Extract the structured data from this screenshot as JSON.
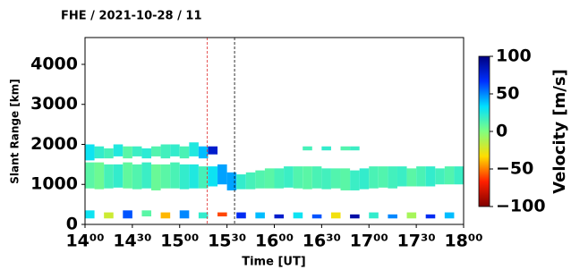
{
  "chart_data": {
    "type": "range-time",
    "title": "FHE / 2021-10-28 / 11",
    "xlabel": "Time [UT]",
    "ylabel": "Slant Range [km]",
    "colorbar_label": "Velocity [m/s]",
    "xlim": [
      14,
      18
    ],
    "xticks": [
      {
        "value": 14,
        "label": "14⁰⁰"
      },
      {
        "value": 14.5,
        "label": "14³⁰"
      },
      {
        "value": 15,
        "label": "15⁰⁰"
      },
      {
        "value": 15.5,
        "label": "15³⁰"
      },
      {
        "value": 16,
        "label": "16⁰⁰"
      },
      {
        "value": 16.5,
        "label": "16³⁰"
      },
      {
        "value": 17,
        "label": "17⁰⁰"
      },
      {
        "value": 17.5,
        "label": "17³⁰"
      },
      {
        "value": 18,
        "label": "18⁰⁰"
      }
    ],
    "ylim": [
      0,
      4670
    ],
    "yticks": [
      0,
      1000,
      2000,
      3000,
      4000
    ],
    "clim": [
      -100,
      100
    ],
    "cticks": [
      100,
      50,
      0,
      {
        "value": -50,
        "label": "−50"
      },
      {
        "value": -100,
        "label": "−100"
      }
    ],
    "colormap": [
      "#800000",
      "#ff2000",
      "#ffdd00",
      "#80ff80",
      "#00e0ff",
      "#0030ff",
      "#000080"
    ],
    "vlines": [
      {
        "x": 15.29,
        "color": "#e03030"
      },
      {
        "x": 15.58,
        "color": "#000000"
      }
    ],
    "cells": [
      [
        14.0,
        900,
        1550,
        10
      ],
      [
        14.1,
        880,
        1550,
        5
      ],
      [
        14.2,
        900,
        1500,
        15
      ],
      [
        14.3,
        920,
        1500,
        20
      ],
      [
        14.4,
        900,
        1550,
        8
      ],
      [
        14.5,
        880,
        1500,
        12
      ],
      [
        14.6,
        900,
        1550,
        18
      ],
      [
        14.7,
        850,
        1500,
        6
      ],
      [
        14.8,
        900,
        1500,
        10
      ],
      [
        14.9,
        900,
        1550,
        14
      ],
      [
        15.0,
        880,
        1500,
        20
      ],
      [
        15.1,
        900,
        1500,
        25
      ],
      [
        15.2,
        900,
        1450,
        15
      ],
      [
        15.3,
        950,
        1450,
        30
      ],
      [
        15.4,
        1000,
        1500,
        45
      ],
      [
        14.0,
        1600,
        2000,
        30
      ],
      [
        14.1,
        1650,
        1950,
        20
      ],
      [
        14.2,
        1650,
        1900,
        15
      ],
      [
        14.3,
        1700,
        2000,
        25
      ],
      [
        14.4,
        1650,
        1950,
        10
      ],
      [
        14.5,
        1700,
        1950,
        18
      ],
      [
        14.6,
        1650,
        1900,
        22
      ],
      [
        14.7,
        1700,
        1950,
        12
      ],
      [
        14.8,
        1650,
        2000,
        16
      ],
      [
        14.9,
        1700,
        2000,
        20
      ],
      [
        15.0,
        1650,
        1950,
        14
      ],
      [
        15.1,
        1700,
        2050,
        25
      ],
      [
        15.2,
        1650,
        1950,
        40
      ],
      [
        15.3,
        1750,
        1950,
        80
      ],
      [
        15.5,
        850,
        1300,
        45
      ],
      [
        15.6,
        880,
        1250,
        20
      ],
      [
        15.7,
        880,
        1300,
        15
      ],
      [
        15.8,
        900,
        1350,
        12
      ],
      [
        15.9,
        900,
        1400,
        10
      ],
      [
        16.0,
        900,
        1400,
        15
      ],
      [
        16.1,
        920,
        1450,
        18
      ],
      [
        16.2,
        900,
        1450,
        12
      ],
      [
        16.3,
        880,
        1450,
        10
      ],
      [
        16.4,
        900,
        1450,
        14
      ],
      [
        16.5,
        880,
        1400,
        16
      ],
      [
        16.6,
        900,
        1400,
        12
      ],
      [
        16.7,
        850,
        1400,
        10
      ],
      [
        16.8,
        850,
        1350,
        18
      ],
      [
        16.9,
        880,
        1400,
        20
      ],
      [
        17.0,
        900,
        1450,
        14
      ],
      [
        17.1,
        920,
        1450,
        12
      ],
      [
        17.2,
        900,
        1450,
        16
      ],
      [
        17.3,
        950,
        1450,
        18
      ],
      [
        17.4,
        950,
        1400,
        10
      ],
      [
        17.5,
        950,
        1450,
        14
      ],
      [
        17.6,
        950,
        1450,
        20
      ],
      [
        17.7,
        1000,
        1400,
        16
      ],
      [
        17.8,
        1000,
        1450,
        12
      ],
      [
        17.9,
        1000,
        1450,
        18
      ],
      [
        16.3,
        1850,
        1950,
        15
      ],
      [
        16.5,
        1850,
        1950,
        20
      ],
      [
        16.7,
        1850,
        1950,
        12
      ],
      [
        16.8,
        1850,
        1950,
        18
      ],
      [
        14.0,
        150,
        350,
        30
      ],
      [
        14.2,
        150,
        300,
        -20
      ],
      [
        14.4,
        150,
        350,
        60
      ],
      [
        14.6,
        200,
        350,
        10
      ],
      [
        14.8,
        150,
        300,
        -40
      ],
      [
        15.0,
        150,
        350,
        50
      ],
      [
        15.2,
        150,
        300,
        20
      ],
      [
        15.4,
        200,
        300,
        -60
      ],
      [
        15.6,
        150,
        300,
        70
      ],
      [
        15.8,
        150,
        300,
        40
      ],
      [
        16.0,
        150,
        250,
        80
      ],
      [
        16.2,
        150,
        300,
        30
      ],
      [
        16.4,
        150,
        250,
        60
      ],
      [
        16.6,
        150,
        300,
        -30
      ],
      [
        16.8,
        150,
        250,
        90
      ],
      [
        17.0,
        150,
        300,
        20
      ],
      [
        17.2,
        150,
        250,
        50
      ],
      [
        17.4,
        150,
        300,
        -10
      ],
      [
        17.6,
        150,
        250,
        70
      ],
      [
        17.8,
        150,
        300,
        40
      ]
    ]
  }
}
